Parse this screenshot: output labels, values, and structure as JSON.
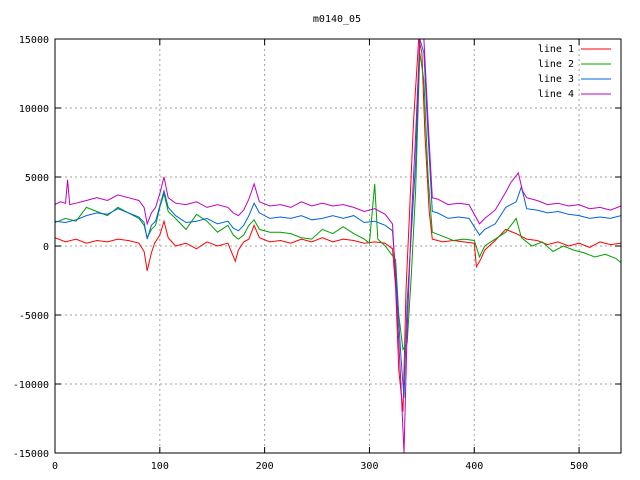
{
  "chart_data": {
    "type": "line",
    "title": "m0140_05",
    "xlabel": "",
    "ylabel": "",
    "xlim": [
      0,
      540
    ],
    "ylim": [
      -15000,
      15000
    ],
    "xticks": [
      0,
      100,
      200,
      300,
      400,
      500
    ],
    "yticks": [
      -15000,
      -10000,
      -5000,
      0,
      5000,
      10000,
      15000
    ],
    "grid": true,
    "legend_position": "top-right",
    "series": [
      {
        "name": "line 1",
        "color": "#ff0000",
        "points": [
          [
            0,
            600
          ],
          [
            10,
            300
          ],
          [
            20,
            500
          ],
          [
            30,
            200
          ],
          [
            40,
            400
          ],
          [
            50,
            300
          ],
          [
            60,
            500
          ],
          [
            70,
            400
          ],
          [
            80,
            200
          ],
          [
            85,
            -400
          ],
          [
            88,
            -1800
          ],
          [
            92,
            -500
          ],
          [
            95,
            200
          ],
          [
            100,
            800
          ],
          [
            104,
            1800
          ],
          [
            108,
            600
          ],
          [
            115,
            0
          ],
          [
            125,
            200
          ],
          [
            135,
            -200
          ],
          [
            145,
            300
          ],
          [
            155,
            0
          ],
          [
            165,
            200
          ],
          [
            172,
            -1100
          ],
          [
            175,
            -300
          ],
          [
            180,
            300
          ],
          [
            185,
            500
          ],
          [
            190,
            1500
          ],
          [
            195,
            600
          ],
          [
            205,
            300
          ],
          [
            215,
            400
          ],
          [
            225,
            200
          ],
          [
            235,
            500
          ],
          [
            245,
            300
          ],
          [
            255,
            600
          ],
          [
            265,
            300
          ],
          [
            275,
            500
          ],
          [
            285,
            400
          ],
          [
            295,
            200
          ],
          [
            305,
            300
          ],
          [
            315,
            200
          ],
          [
            322,
            -200
          ],
          [
            325,
            -3000
          ],
          [
            328,
            -9000
          ],
          [
            332,
            -12000
          ],
          [
            335,
            -3000
          ],
          [
            338,
            2000
          ],
          [
            342,
            9000
          ],
          [
            347,
            15000
          ],
          [
            350,
            14000
          ],
          [
            353,
            8000
          ],
          [
            357,
            2500
          ],
          [
            360,
            500
          ],
          [
            370,
            300
          ],
          [
            380,
            400
          ],
          [
            390,
            300
          ],
          [
            400,
            200
          ],
          [
            402,
            -1500
          ],
          [
            406,
            -1000
          ],
          [
            410,
            -300
          ],
          [
            420,
            400
          ],
          [
            430,
            1200
          ],
          [
            440,
            900
          ],
          [
            450,
            500
          ],
          [
            460,
            400
          ],
          [
            470,
            100
          ],
          [
            480,
            300
          ],
          [
            490,
            0
          ],
          [
            500,
            200
          ],
          [
            510,
            -100
          ],
          [
            520,
            300
          ],
          [
            530,
            100
          ],
          [
            540,
            200
          ]
        ]
      },
      {
        "name": "line 2",
        "color": "#00a000",
        "points": [
          [
            0,
            1700
          ],
          [
            10,
            2000
          ],
          [
            20,
            1800
          ],
          [
            30,
            2800
          ],
          [
            40,
            2500
          ],
          [
            50,
            2200
          ],
          [
            60,
            2800
          ],
          [
            70,
            2400
          ],
          [
            80,
            2000
          ],
          [
            85,
            1500
          ],
          [
            88,
            600
          ],
          [
            92,
            1200
          ],
          [
            96,
            1500
          ],
          [
            100,
            2800
          ],
          [
            104,
            3800
          ],
          [
            108,
            2500
          ],
          [
            115,
            2000
          ],
          [
            125,
            1200
          ],
          [
            135,
            2300
          ],
          [
            145,
            1800
          ],
          [
            155,
            1000
          ],
          [
            165,
            1500
          ],
          [
            170,
            800
          ],
          [
            175,
            500
          ],
          [
            180,
            800
          ],
          [
            185,
            1500
          ],
          [
            190,
            1900
          ],
          [
            195,
            1200
          ],
          [
            205,
            1000
          ],
          [
            215,
            1000
          ],
          [
            225,
            900
          ],
          [
            235,
            600
          ],
          [
            245,
            500
          ],
          [
            255,
            1200
          ],
          [
            265,
            900
          ],
          [
            275,
            1400
          ],
          [
            285,
            900
          ],
          [
            295,
            500
          ],
          [
            300,
            200
          ],
          [
            305,
            4500
          ],
          [
            308,
            500
          ],
          [
            315,
            0
          ],
          [
            325,
            -1000
          ],
          [
            328,
            -5000
          ],
          [
            332,
            -7500
          ],
          [
            336,
            -7000
          ],
          [
            340,
            -2000
          ],
          [
            344,
            4000
          ],
          [
            348,
            14000
          ],
          [
            352,
            12000
          ],
          [
            356,
            5000
          ],
          [
            360,
            1000
          ],
          [
            370,
            700
          ],
          [
            380,
            400
          ],
          [
            390,
            500
          ],
          [
            400,
            400
          ],
          [
            405,
            -800
          ],
          [
            410,
            0
          ],
          [
            420,
            500
          ],
          [
            430,
            1000
          ],
          [
            440,
            2000
          ],
          [
            445,
            600
          ],
          [
            455,
            0
          ],
          [
            465,
            300
          ],
          [
            475,
            -400
          ],
          [
            485,
            0
          ],
          [
            495,
            -300
          ],
          [
            505,
            -500
          ],
          [
            515,
            -800
          ],
          [
            525,
            -600
          ],
          [
            535,
            -900
          ],
          [
            540,
            -1200
          ]
        ]
      },
      {
        "name": "line 3",
        "color": "#0064dc",
        "points": [
          [
            0,
            1800
          ],
          [
            10,
            1700
          ],
          [
            20,
            1900
          ],
          [
            30,
            2200
          ],
          [
            40,
            2400
          ],
          [
            50,
            2300
          ],
          [
            60,
            2700
          ],
          [
            70,
            2400
          ],
          [
            80,
            2100
          ],
          [
            85,
            1700
          ],
          [
            88,
            500
          ],
          [
            92,
            1500
          ],
          [
            96,
            1800
          ],
          [
            100,
            2900
          ],
          [
            104,
            4000
          ],
          [
            108,
            2800
          ],
          [
            115,
            2200
          ],
          [
            125,
            1700
          ],
          [
            135,
            1800
          ],
          [
            145,
            2000
          ],
          [
            155,
            1600
          ],
          [
            165,
            1800
          ],
          [
            170,
            1300
          ],
          [
            175,
            1100
          ],
          [
            180,
            1500
          ],
          [
            185,
            2200
          ],
          [
            190,
            3100
          ],
          [
            195,
            2400
          ],
          [
            205,
            2000
          ],
          [
            215,
            2100
          ],
          [
            225,
            2000
          ],
          [
            235,
            2200
          ],
          [
            245,
            1900
          ],
          [
            255,
            2000
          ],
          [
            265,
            2200
          ],
          [
            275,
            2000
          ],
          [
            285,
            2200
          ],
          [
            295,
            1700
          ],
          [
            305,
            1800
          ],
          [
            315,
            1500
          ],
          [
            322,
            1100
          ],
          [
            326,
            -3000
          ],
          [
            330,
            -8000
          ],
          [
            333,
            -11000
          ],
          [
            336,
            -4000
          ],
          [
            340,
            1000
          ],
          [
            344,
            6000
          ],
          [
            348,
            15000
          ],
          [
            352,
            14000
          ],
          [
            356,
            8000
          ],
          [
            360,
            2500
          ],
          [
            365,
            2400
          ],
          [
            375,
            2000
          ],
          [
            385,
            2100
          ],
          [
            395,
            2000
          ],
          [
            405,
            800
          ],
          [
            410,
            1200
          ],
          [
            420,
            1600
          ],
          [
            430,
            2800
          ],
          [
            440,
            3200
          ],
          [
            445,
            4300
          ],
          [
            450,
            2700
          ],
          [
            460,
            2600
          ],
          [
            470,
            2400
          ],
          [
            480,
            2500
          ],
          [
            490,
            2300
          ],
          [
            500,
            2200
          ],
          [
            510,
            2000
          ],
          [
            520,
            2100
          ],
          [
            530,
            2000
          ],
          [
            540,
            2200
          ]
        ]
      },
      {
        "name": "line 4",
        "color": "#c000c0",
        "points": [
          [
            0,
            3000
          ],
          [
            5,
            3200
          ],
          [
            10,
            3100
          ],
          [
            12,
            4800
          ],
          [
            14,
            3000
          ],
          [
            20,
            3100
          ],
          [
            30,
            3300
          ],
          [
            40,
            3500
          ],
          [
            50,
            3300
          ],
          [
            60,
            3700
          ],
          [
            70,
            3500
          ],
          [
            80,
            3300
          ],
          [
            85,
            2800
          ],
          [
            88,
            1600
          ],
          [
            92,
            2400
          ],
          [
            96,
            2800
          ],
          [
            100,
            3800
          ],
          [
            104,
            5000
          ],
          [
            108,
            3500
          ],
          [
            115,
            3100
          ],
          [
            125,
            3000
          ],
          [
            135,
            3200
          ],
          [
            145,
            2800
          ],
          [
            155,
            3000
          ],
          [
            165,
            2800
          ],
          [
            170,
            2400
          ],
          [
            175,
            2200
          ],
          [
            180,
            2600
          ],
          [
            185,
            3400
          ],
          [
            190,
            4500
          ],
          [
            195,
            3200
          ],
          [
            205,
            2900
          ],
          [
            215,
            3000
          ],
          [
            225,
            2800
          ],
          [
            235,
            3200
          ],
          [
            245,
            2900
          ],
          [
            255,
            3100
          ],
          [
            265,
            2900
          ],
          [
            275,
            3000
          ],
          [
            285,
            2800
          ],
          [
            295,
            2500
          ],
          [
            305,
            2700
          ],
          [
            315,
            2300
          ],
          [
            322,
            1600
          ],
          [
            326,
            -4000
          ],
          [
            330,
            -10000
          ],
          [
            333,
            -15000
          ],
          [
            336,
            -6000
          ],
          [
            340,
            2000
          ],
          [
            344,
            8000
          ],
          [
            348,
            15000
          ],
          [
            352,
            15000
          ],
          [
            356,
            9000
          ],
          [
            360,
            3500
          ],
          [
            365,
            3400
          ],
          [
            375,
            3000
          ],
          [
            385,
            3100
          ],
          [
            395,
            3000
          ],
          [
            405,
            1600
          ],
          [
            410,
            2000
          ],
          [
            420,
            2600
          ],
          [
            430,
            3900
          ],
          [
            435,
            4600
          ],
          [
            442,
            5300
          ],
          [
            446,
            4000
          ],
          [
            450,
            3500
          ],
          [
            460,
            3300
          ],
          [
            470,
            3000
          ],
          [
            480,
            3100
          ],
          [
            490,
            2900
          ],
          [
            500,
            3000
          ],
          [
            510,
            2700
          ],
          [
            520,
            2800
          ],
          [
            530,
            2600
          ],
          [
            540,
            2900
          ]
        ]
      }
    ]
  }
}
